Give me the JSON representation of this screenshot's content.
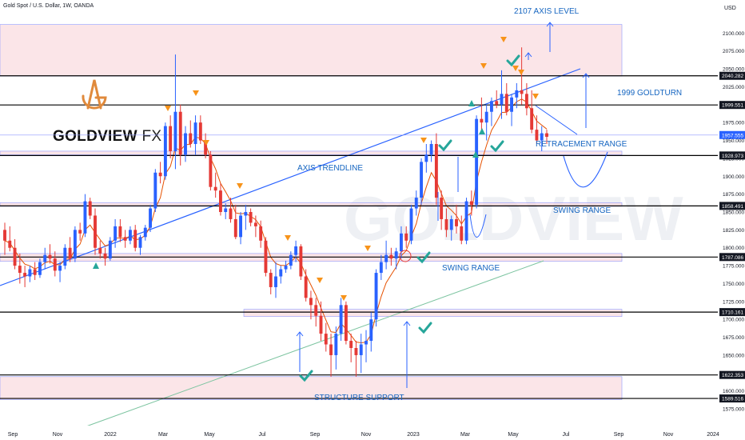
{
  "header": {
    "symbol_line": "Gold Spot / U.S. Dollar, 1W, OANDA",
    "currency": "USD"
  },
  "logo": {
    "brand": "GOLDVIEW",
    "suffix": "FX",
    "watermark": "GOLDVIEW"
  },
  "colors": {
    "up": "#2962ff",
    "down": "#e53935",
    "zone": "#f9d7dc",
    "zone_border": "#8e9aff",
    "trend": "#2962ff",
    "ema": "#e65100",
    "ma": "#7cc4a0",
    "arrow": "#f7931a",
    "check": "#26a69a",
    "axis_label": "#2196f3",
    "price_tag": "#131722",
    "current_tag": "#2962ff"
  },
  "chart_data": {
    "type": "candlestick",
    "title": "Gold Spot / U.S. Dollar, 1W, OANDA",
    "ylabel": "USD",
    "ylim": [
      1565,
      2135
    ],
    "x_ticks": [
      "Sep",
      "Nov",
      "2022",
      "Mar",
      "May",
      "Jul",
      "Sep",
      "Nov",
      "2023",
      "Mar",
      "May",
      "Jul",
      "Sep",
      "Nov",
      "2024"
    ],
    "y_ticks": [
      "2100.000",
      "2075.000",
      "2050.000",
      "2025.000",
      "1975.000",
      "1950.000",
      "1925.000",
      "1900.000",
      "1875.000",
      "1850.000",
      "1825.000",
      "1800.000",
      "1775.000",
      "1750.000",
      "1725.000",
      "1700.000",
      "1675.000",
      "1650.000",
      "1625.000",
      "1600.000",
      "1575.000"
    ],
    "levels": [
      {
        "label": "2040.282",
        "value": 2040.282
      },
      {
        "label": "1999.551",
        "value": 1999.551
      },
      {
        "label": "1957.555",
        "value": 1957.555,
        "current": true
      },
      {
        "label": "1928.973",
        "value": 1928.973
      },
      {
        "label": "1858.491",
        "value": 1858.491
      },
      {
        "label": "1787.086",
        "value": 1787.086
      },
      {
        "label": "1710.161",
        "value": 1710.161
      },
      {
        "label": "1622.353",
        "value": 1622.353
      },
      {
        "label": "1589.516",
        "value": 1589.516
      }
    ],
    "zones": [
      {
        "from": 2040,
        "to": 2112
      },
      {
        "from": 1930,
        "to": 1935
      },
      {
        "from": 1858,
        "to": 1863
      },
      {
        "from": 1781,
        "to": 1792
      },
      {
        "from": 1704,
        "to": 1714
      },
      {
        "from": 1588,
        "to": 1620
      }
    ],
    "annotations": [
      "2107 AXIS LEVEL",
      "1999 GOLDTURN",
      "RETRACEMENT RANGE",
      "AXIS TRENDLINE",
      "SWING RANGE",
      "SWING RANGE",
      "STRUCTURE SUPPORT"
    ],
    "candles": [
      [
        1825,
        1835,
        1790,
        1810
      ],
      [
        1810,
        1830,
        1795,
        1800
      ],
      [
        1800,
        1812,
        1770,
        1775
      ],
      [
        1775,
        1792,
        1750,
        1765
      ],
      [
        1765,
        1775,
        1745,
        1760
      ],
      [
        1760,
        1775,
        1752,
        1770
      ],
      [
        1770,
        1780,
        1755,
        1762
      ],
      [
        1762,
        1785,
        1758,
        1780
      ],
      [
        1780,
        1800,
        1770,
        1790
      ],
      [
        1790,
        1805,
        1778,
        1785
      ],
      [
        1785,
        1795,
        1760,
        1768
      ],
      [
        1768,
        1780,
        1752,
        1775
      ],
      [
        1775,
        1805,
        1770,
        1800
      ],
      [
        1800,
        1815,
        1780,
        1785
      ],
      [
        1785,
        1830,
        1780,
        1825
      ],
      [
        1825,
        1835,
        1810,
        1820
      ],
      [
        1820,
        1875,
        1815,
        1865
      ],
      [
        1865,
        1870,
        1840,
        1845
      ],
      [
        1845,
        1855,
        1790,
        1800
      ],
      [
        1800,
        1810,
        1785,
        1792
      ],
      [
        1792,
        1800,
        1775,
        1785
      ],
      [
        1785,
        1815,
        1782,
        1810
      ],
      [
        1810,
        1840,
        1800,
        1830
      ],
      [
        1830,
        1840,
        1808,
        1815
      ],
      [
        1815,
        1825,
        1800,
        1810
      ],
      [
        1810,
        1830,
        1805,
        1825
      ],
      [
        1825,
        1832,
        1795,
        1800
      ],
      [
        1800,
        1818,
        1790,
        1815
      ],
      [
        1815,
        1832,
        1810,
        1828
      ],
      [
        1828,
        1860,
        1822,
        1855
      ],
      [
        1855,
        1910,
        1850,
        1905
      ],
      [
        1905,
        1920,
        1890,
        1900
      ],
      [
        1900,
        1975,
        1895,
        1970
      ],
      [
        1970,
        1985,
        1925,
        1935
      ],
      [
        1935,
        2070,
        1910,
        1990
      ],
      [
        1990,
        2000,
        1915,
        1930
      ],
      [
        1930,
        1970,
        1920,
        1960
      ],
      [
        1960,
        1978,
        1940,
        1945
      ],
      [
        1945,
        1985,
        1930,
        1975
      ],
      [
        1975,
        1985,
        1945,
        1950
      ],
      [
        1950,
        1960,
        1925,
        1930
      ],
      [
        1930,
        1935,
        1880,
        1885
      ],
      [
        1885,
        1905,
        1870,
        1880
      ],
      [
        1880,
        1890,
        1845,
        1850
      ],
      [
        1850,
        1862,
        1840,
        1855
      ],
      [
        1855,
        1870,
        1835,
        1840
      ],
      [
        1840,
        1860,
        1812,
        1815
      ],
      [
        1815,
        1850,
        1805,
        1845
      ],
      [
        1845,
        1860,
        1825,
        1850
      ],
      [
        1850,
        1855,
        1830,
        1835
      ],
      [
        1835,
        1845,
        1815,
        1830
      ],
      [
        1830,
        1838,
        1800,
        1810
      ],
      [
        1810,
        1815,
        1760,
        1765
      ],
      [
        1765,
        1770,
        1735,
        1745
      ],
      [
        1745,
        1780,
        1730,
        1760
      ],
      [
        1760,
        1775,
        1750,
        1770
      ],
      [
        1770,
        1782,
        1765,
        1775
      ],
      [
        1775,
        1795,
        1770,
        1790
      ],
      [
        1790,
        1810,
        1780,
        1802
      ],
      [
        1802,
        1805,
        1755,
        1760
      ],
      [
        1760,
        1770,
        1725,
        1730
      ],
      [
        1730,
        1740,
        1700,
        1720
      ],
      [
        1720,
        1730,
        1690,
        1705
      ],
      [
        1705,
        1725,
        1670,
        1680
      ],
      [
        1680,
        1695,
        1655,
        1665
      ],
      [
        1665,
        1680,
        1620,
        1650
      ],
      [
        1650,
        1690,
        1630,
        1680
      ],
      [
        1680,
        1730,
        1670,
        1720
      ],
      [
        1720,
        1725,
        1665,
        1670
      ],
      [
        1670,
        1680,
        1640,
        1660
      ],
      [
        1660,
        1670,
        1620,
        1650
      ],
      [
        1650,
        1680,
        1625,
        1665
      ],
      [
        1665,
        1685,
        1640,
        1670
      ],
      [
        1670,
        1710,
        1655,
        1700
      ],
      [
        1700,
        1770,
        1690,
        1765
      ],
      [
        1765,
        1790,
        1755,
        1780
      ],
      [
        1780,
        1810,
        1770,
        1790
      ],
      [
        1790,
        1800,
        1775,
        1785
      ],
      [
        1785,
        1800,
        1770,
        1795
      ],
      [
        1795,
        1830,
        1785,
        1820
      ],
      [
        1820,
        1830,
        1800,
        1810
      ],
      [
        1810,
        1860,
        1805,
        1855
      ],
      [
        1855,
        1880,
        1845,
        1870
      ],
      [
        1870,
        1925,
        1860,
        1920
      ],
      [
        1920,
        1945,
        1905,
        1930
      ],
      [
        1930,
        1950,
        1920,
        1945
      ],
      [
        1945,
        1960,
        1860,
        1870
      ],
      [
        1870,
        1880,
        1825,
        1840
      ],
      [
        1840,
        1855,
        1815,
        1825
      ],
      [
        1825,
        1845,
        1810,
        1840
      ],
      [
        1840,
        1860,
        1820,
        1830
      ],
      [
        1830,
        1845,
        1805,
        1810
      ],
      [
        1810,
        1870,
        1805,
        1865
      ],
      [
        1865,
        1880,
        1845,
        1860
      ],
      [
        1860,
        1985,
        1855,
        1980
      ],
      [
        1980,
        2010,
        1960,
        1975
      ],
      [
        1975,
        2000,
        1950,
        1990
      ],
      [
        1990,
        2010,
        1970,
        2005
      ],
      [
        2005,
        2020,
        1995,
        2000
      ],
      [
        2000,
        2048,
        1980,
        2015
      ],
      [
        2015,
        2030,
        1985,
        1990
      ],
      [
        1990,
        2015,
        1970,
        2010
      ],
      [
        2010,
        2030,
        1995,
        2020
      ],
      [
        2020,
        2080,
        2000,
        2015
      ],
      [
        2015,
        2030,
        1985,
        1995
      ],
      [
        1995,
        2020,
        1960,
        1965
      ],
      [
        1965,
        1985,
        1945,
        1950
      ],
      [
        1950,
        1970,
        1935,
        1960
      ],
      [
        1960,
        1965,
        1945,
        1955
      ]
    ]
  }
}
